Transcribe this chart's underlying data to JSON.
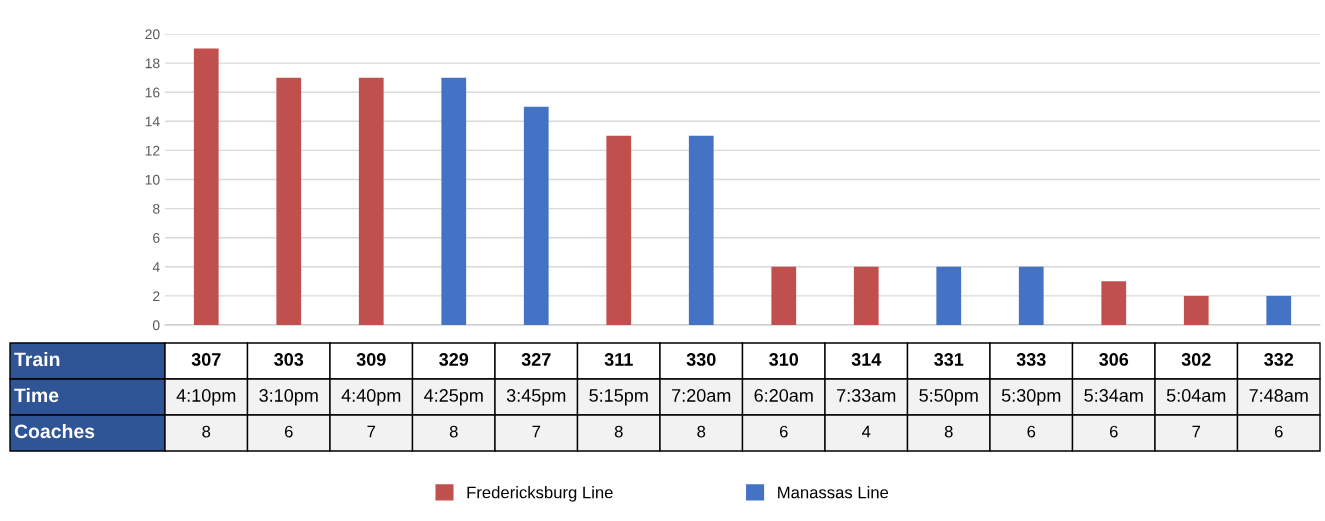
{
  "chart_data": {
    "type": "bar",
    "categories": [
      "307",
      "303",
      "309",
      "329",
      "327",
      "311",
      "330",
      "310",
      "314",
      "331",
      "333",
      "306",
      "302",
      "332"
    ],
    "series": [
      {
        "name": "Fredericksburg Line",
        "color": "#c0504d",
        "values": [
          19,
          17,
          17,
          null,
          null,
          13,
          null,
          4,
          4,
          null,
          null,
          3,
          2,
          null
        ]
      },
      {
        "name": "Manassas Line",
        "color": "#4472c4",
        "values": [
          null,
          null,
          null,
          17,
          15,
          null,
          13,
          null,
          null,
          4,
          4,
          null,
          null,
          2
        ]
      }
    ],
    "ylim": [
      0,
      20
    ],
    "yticks": [
      0,
      2,
      4,
      6,
      8,
      10,
      12,
      14,
      16,
      18,
      20
    ],
    "grid": "y",
    "legend": "bottom",
    "annotations": [
      "Train",
      "Time",
      "Coaches",
      "4:10pm",
      "3:10pm",
      "4:40pm",
      "4:25pm",
      "3:45pm",
      "5:15pm",
      "7:20am",
      "6:20am",
      "7:33am",
      "5:50pm",
      "5:30pm",
      "5:34am",
      "5:04am",
      "7:48am",
      "8",
      "6",
      "7",
      "8",
      "7",
      "8",
      "8",
      "6",
      "4",
      "8",
      "6",
      "6",
      "7",
      "6"
    ]
  }
}
